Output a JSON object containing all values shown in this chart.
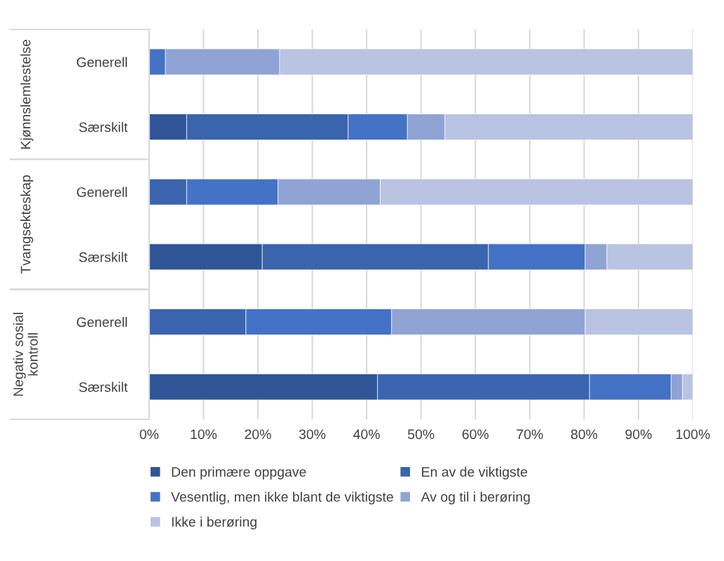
{
  "chart_data": {
    "type": "bar",
    "orientation": "horizontal",
    "stacked": true,
    "categories": [
      "Generell",
      "Særskilt",
      "Generell",
      "Særskilt",
      "Generell",
      "Særskilt"
    ],
    "annotations": [
      "Kjønnslemlestelse",
      "Tvangsekteskap",
      "Negativ sosial kontroll"
    ],
    "series": [
      {
        "name": "Den primære oppgave",
        "color": "#2f5597",
        "values": [
          0,
          6.9,
          0,
          20.8,
          0,
          42.0
        ]
      },
      {
        "name": "En av de viktigste",
        "color": "#3a64ad",
        "values": [
          0,
          29.7,
          6.9,
          41.6,
          17.8,
          39.0
        ]
      },
      {
        "name": "Vesentlig, men ikke blant de viktigste",
        "color": "#4472c4",
        "values": [
          3.0,
          10.9,
          16.8,
          17.8,
          26.8,
          15.0
        ]
      },
      {
        "name": "Av og til i berøring",
        "color": "#8fa3d4",
        "values": [
          21.0,
          6.9,
          18.8,
          4.0,
          35.6,
          2.1
        ]
      },
      {
        "name": "Ikke i berøring",
        "color": "#b9c3e2",
        "values": [
          76.0,
          45.6,
          57.5,
          15.8,
          19.8,
          1.9
        ]
      }
    ],
    "xlim": [
      0,
      100
    ],
    "xticks": [
      {
        "value": 0,
        "label": "0%"
      },
      {
        "value": 10,
        "label": "10%"
      },
      {
        "value": 20,
        "label": "20%"
      },
      {
        "value": 30,
        "label": "30%"
      },
      {
        "value": 40,
        "label": "40%"
      },
      {
        "value": 50,
        "label": "50%"
      },
      {
        "value": 60,
        "label": "60%"
      },
      {
        "value": 70,
        "label": "70%"
      },
      {
        "value": 80,
        "label": "80%"
      },
      {
        "value": 90,
        "label": "90%"
      },
      {
        "value": 100,
        "label": "100%"
      }
    ],
    "grid": "x",
    "legend": "bottom"
  }
}
